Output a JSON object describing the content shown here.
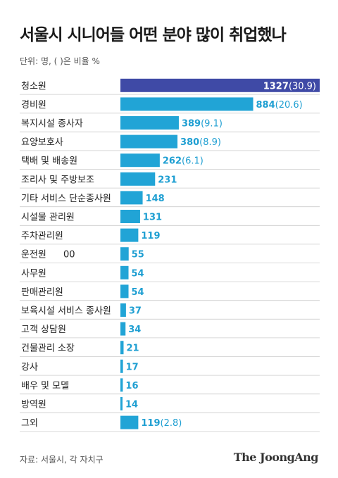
{
  "header": {
    "title": "서울시 시니어들 어떤 분야 많이 취업했나",
    "subtitle": "단위: 명, ( )은 비율 %"
  },
  "footer": {
    "source": "자료: 서울시, 각 자치구",
    "brand": "The JoongAng"
  },
  "colors": {
    "highlight_bar": "#3f4aa6",
    "bar": "#21a4d6",
    "value_text": "#1f9fd2",
    "highlight_value_text": "#ffffff",
    "row_divider": "#cccccc"
  },
  "chart_data": {
    "type": "bar",
    "orientation": "horizontal",
    "xlim": [
      0,
      1327
    ],
    "grid": false,
    "categories": [
      "청소원",
      "경비원",
      "복지시설 종사자",
      "요양보호사",
      "택배 및 배송원",
      "조리사 및 주방보조",
      "기타 서비스 단순종사원",
      "시설물 관리원",
      "주차관리원",
      "운전원",
      "사무원",
      "판매관리원",
      "보육시설 서비스 종사원",
      "고객 상담원",
      "건물관리 소장",
      "강사",
      "배우 및 모델",
      "방역원",
      "그외"
    ],
    "values": [
      1327,
      884,
      389,
      380,
      262,
      231,
      148,
      131,
      119,
      55,
      54,
      54,
      37,
      34,
      21,
      17,
      16,
      14,
      119
    ],
    "value_labels": [
      "1327",
      "884",
      "389",
      "380",
      "262",
      "231",
      "148",
      "131",
      "119",
      "55",
      "54",
      "54",
      "37",
      "34",
      "21",
      "17",
      "16",
      "14",
      "119"
    ],
    "percent_labels": [
      "(30.9)",
      "(20.6)",
      "(9.1)",
      "(8.9)",
      "(6.1)",
      "",
      "",
      "",
      "",
      "",
      "",
      "",
      "",
      "",
      "",
      "",
      "",
      "",
      "(2.8)"
    ],
    "annotation": {
      "category": "운전원",
      "text": "00"
    }
  }
}
